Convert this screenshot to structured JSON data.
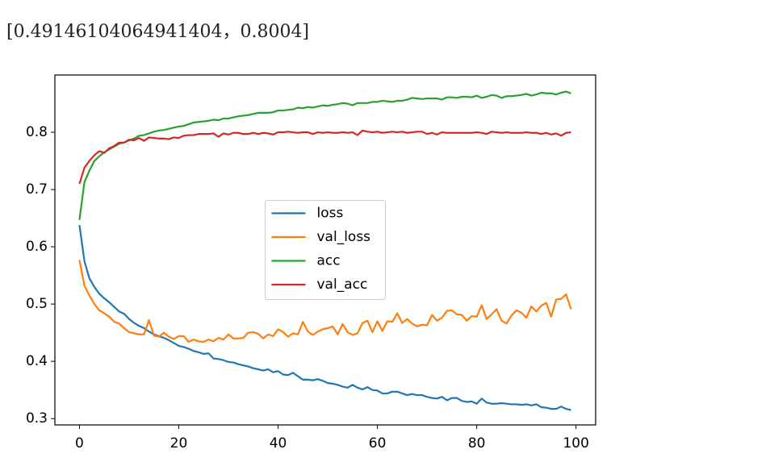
{
  "output_text": "[0.49146104064941404，0.8004]",
  "chart_data": {
    "type": "line",
    "x": [
      0,
      1,
      2,
      3,
      4,
      5,
      6,
      7,
      8,
      9,
      10,
      11,
      12,
      13,
      14,
      15,
      16,
      17,
      18,
      19,
      20,
      21,
      22,
      23,
      24,
      25,
      26,
      27,
      28,
      29,
      30,
      31,
      32,
      33,
      34,
      35,
      36,
      37,
      38,
      39,
      40,
      41,
      42,
      43,
      44,
      45,
      46,
      47,
      48,
      49,
      50,
      51,
      52,
      53,
      54,
      55,
      56,
      57,
      58,
      59,
      60,
      61,
      62,
      63,
      64,
      65,
      66,
      67,
      68,
      69,
      70,
      71,
      72,
      73,
      74,
      75,
      76,
      77,
      78,
      79,
      80,
      81,
      82,
      83,
      84,
      85,
      86,
      87,
      88,
      89,
      90,
      91,
      92,
      93,
      94,
      95,
      96,
      97,
      98,
      99
    ],
    "series": [
      {
        "name": "loss",
        "color": "#1f77b4",
        "values": [
          0.638,
          0.575,
          0.545,
          0.53,
          0.518,
          0.51,
          0.503,
          0.495,
          0.487,
          0.483,
          0.474,
          0.467,
          0.462,
          0.458,
          0.452,
          0.447,
          0.444,
          0.441,
          0.437,
          0.432,
          0.427,
          0.425,
          0.422,
          0.418,
          0.416,
          0.413,
          0.414,
          0.405,
          0.404,
          0.402,
          0.399,
          0.398,
          0.395,
          0.393,
          0.391,
          0.388,
          0.386,
          0.384,
          0.386,
          0.381,
          0.383,
          0.377,
          0.376,
          0.38,
          0.374,
          0.368,
          0.368,
          0.367,
          0.369,
          0.366,
          0.362,
          0.361,
          0.359,
          0.356,
          0.354,
          0.359,
          0.354,
          0.351,
          0.355,
          0.35,
          0.349,
          0.344,
          0.344,
          0.347,
          0.347,
          0.344,
          0.341,
          0.343,
          0.341,
          0.341,
          0.338,
          0.336,
          0.335,
          0.338,
          0.332,
          0.336,
          0.336,
          0.331,
          0.329,
          0.33,
          0.326,
          0.335,
          0.328,
          0.326,
          0.326,
          0.327,
          0.326,
          0.325,
          0.325,
          0.324,
          0.325,
          0.323,
          0.325,
          0.32,
          0.319,
          0.317,
          0.317,
          0.321,
          0.317,
          0.315
        ]
      },
      {
        "name": "val_loss",
        "color": "#ff7f0e",
        "values": [
          0.577,
          0.532,
          0.515,
          0.5,
          0.489,
          0.484,
          0.478,
          0.469,
          0.466,
          0.458,
          0.451,
          0.449,
          0.447,
          0.447,
          0.472,
          0.445,
          0.443,
          0.45,
          0.443,
          0.439,
          0.444,
          0.444,
          0.434,
          0.438,
          0.435,
          0.434,
          0.438,
          0.435,
          0.441,
          0.438,
          0.447,
          0.44,
          0.44,
          0.441,
          0.45,
          0.451,
          0.448,
          0.44,
          0.447,
          0.444,
          0.456,
          0.451,
          0.443,
          0.449,
          0.447,
          0.469,
          0.452,
          0.446,
          0.452,
          0.456,
          0.458,
          0.461,
          0.447,
          0.465,
          0.451,
          0.446,
          0.449,
          0.467,
          0.471,
          0.451,
          0.47,
          0.453,
          0.47,
          0.469,
          0.484,
          0.467,
          0.474,
          0.466,
          0.461,
          0.464,
          0.463,
          0.481,
          0.471,
          0.476,
          0.488,
          0.489,
          0.482,
          0.481,
          0.471,
          0.479,
          0.478,
          0.498,
          0.474,
          0.482,
          0.491,
          0.471,
          0.466,
          0.48,
          0.489,
          0.485,
          0.476,
          0.496,
          0.487,
          0.497,
          0.502,
          0.478,
          0.508,
          0.509,
          0.517,
          0.491
        ]
      },
      {
        "name": "acc",
        "color": "#2ca02c",
        "values": [
          0.647,
          0.713,
          0.733,
          0.75,
          0.758,
          0.765,
          0.77,
          0.775,
          0.78,
          0.782,
          0.786,
          0.789,
          0.794,
          0.795,
          0.798,
          0.801,
          0.803,
          0.804,
          0.806,
          0.808,
          0.81,
          0.811,
          0.814,
          0.817,
          0.818,
          0.819,
          0.82,
          0.822,
          0.821,
          0.824,
          0.824,
          0.826,
          0.828,
          0.829,
          0.83,
          0.832,
          0.834,
          0.834,
          0.834,
          0.835,
          0.838,
          0.838,
          0.839,
          0.84,
          0.843,
          0.842,
          0.844,
          0.843,
          0.845,
          0.847,
          0.846,
          0.848,
          0.849,
          0.851,
          0.85,
          0.847,
          0.851,
          0.851,
          0.851,
          0.853,
          0.853,
          0.855,
          0.854,
          0.853,
          0.855,
          0.855,
          0.857,
          0.86,
          0.859,
          0.858,
          0.859,
          0.859,
          0.859,
          0.857,
          0.861,
          0.861,
          0.86,
          0.862,
          0.862,
          0.861,
          0.864,
          0.86,
          0.862,
          0.865,
          0.864,
          0.86,
          0.863,
          0.863,
          0.864,
          0.865,
          0.867,
          0.864,
          0.866,
          0.869,
          0.868,
          0.868,
          0.866,
          0.869,
          0.871,
          0.868
        ]
      },
      {
        "name": "val_acc",
        "color": "#d62728",
        "values": [
          0.71,
          0.738,
          0.75,
          0.76,
          0.767,
          0.764,
          0.772,
          0.776,
          0.782,
          0.782,
          0.787,
          0.786,
          0.79,
          0.785,
          0.791,
          0.79,
          0.789,
          0.789,
          0.788,
          0.791,
          0.79,
          0.794,
          0.795,
          0.795,
          0.797,
          0.797,
          0.797,
          0.798,
          0.792,
          0.798,
          0.796,
          0.799,
          0.799,
          0.797,
          0.797,
          0.799,
          0.797,
          0.799,
          0.798,
          0.796,
          0.8,
          0.8,
          0.801,
          0.8,
          0.799,
          0.8,
          0.8,
          0.797,
          0.8,
          0.799,
          0.8,
          0.799,
          0.799,
          0.8,
          0.799,
          0.8,
          0.795,
          0.803,
          0.801,
          0.8,
          0.801,
          0.799,
          0.8,
          0.801,
          0.8,
          0.801,
          0.799,
          0.8,
          0.801,
          0.801,
          0.797,
          0.799,
          0.796,
          0.8,
          0.799,
          0.799,
          0.799,
          0.799,
          0.799,
          0.799,
          0.8,
          0.799,
          0.797,
          0.801,
          0.8,
          0.799,
          0.8,
          0.799,
          0.799,
          0.799,
          0.8,
          0.799,
          0.799,
          0.797,
          0.799,
          0.796,
          0.798,
          0.794,
          0.799,
          0.8
        ]
      }
    ],
    "xlim": [
      -4.95,
      103.95
    ],
    "ylim": [
      0.289,
      0.9
    ],
    "xticks": [
      0,
      20,
      40,
      60,
      80,
      100
    ],
    "yticks": [
      0.3,
      0.4,
      0.5,
      0.6,
      0.7,
      0.8
    ],
    "legend_loc": "center"
  }
}
